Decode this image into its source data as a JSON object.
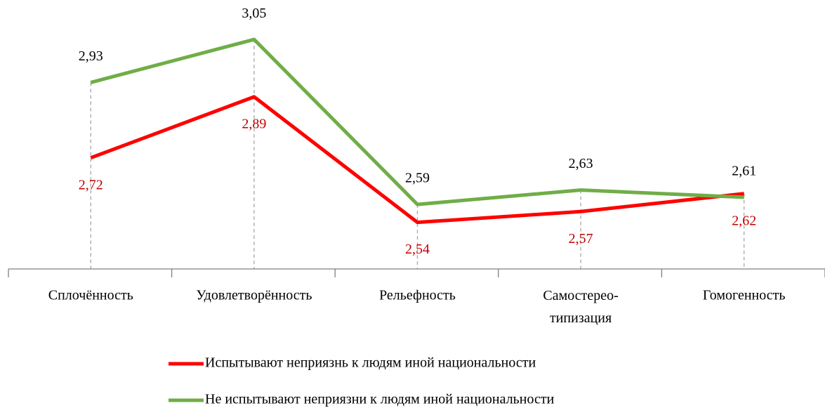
{
  "chart_data": {
    "type": "line",
    "categories": [
      "Сплочённость",
      "Удовлетворённость",
      "Рельефность",
      "Самостерео-\nтипизация",
      "Гомогенность"
    ],
    "series": [
      {
        "name": "Испытывают неприязнь к людям иной национальности",
        "color": "#ff0000",
        "values": [
          2.72,
          2.89,
          2.54,
          2.57,
          2.62
        ],
        "value_labels": [
          "2,72",
          "2,89",
          "2,54",
          "2,57",
          "2,62"
        ]
      },
      {
        "name": "Не испытывают неприязни к людям иной национальности",
        "color": "#70ad47",
        "values": [
          2.93,
          3.05,
          2.59,
          2.63,
          2.61
        ],
        "value_labels": [
          "2,93",
          "3,05",
          "2,59",
          "2,63",
          "2,61"
        ]
      }
    ],
    "ylim": [
      2.41,
      3.16
    ]
  }
}
